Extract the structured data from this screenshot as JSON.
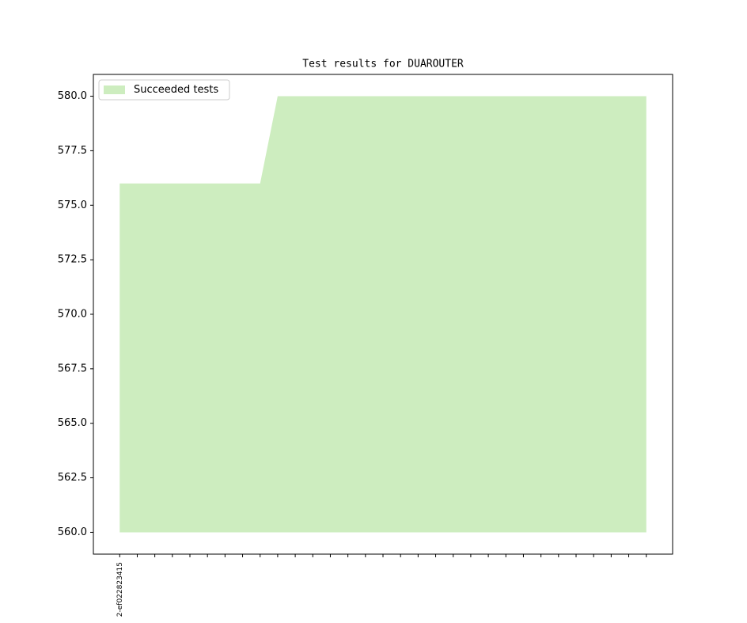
{
  "chart_data": {
    "type": "area",
    "title": "Test results for DUAROUTER",
    "categories": [
      "2-ef022823415",
      null,
      null,
      null,
      null,
      null,
      null,
      null,
      null,
      null,
      null,
      null,
      null,
      null,
      null,
      null,
      null,
      null,
      null,
      null,
      null,
      null,
      null,
      null,
      null,
      null,
      null,
      null,
      null,
      null,
      null
    ],
    "series": [
      {
        "name": "Succeeded tests",
        "color": "#cdedbf",
        "values": [
          576,
          576,
          576,
          576,
          576,
          576,
          576,
          576,
          576,
          580,
          580,
          580,
          580,
          580,
          580,
          580,
          580,
          580,
          580,
          580,
          580,
          580,
          580,
          580,
          580,
          580,
          580,
          580,
          580,
          580,
          580
        ]
      }
    ],
    "baseline": 560,
    "xlim": [
      -1.5,
      31.5
    ],
    "ylim": [
      559,
      581
    ],
    "yticks": [
      {
        "value": 560,
        "label": "560.0"
      },
      562.5,
      {
        "value": 565,
        "label": "565.0"
      },
      567.5,
      {
        "value": 570,
        "label": "570.0"
      },
      572.5,
      {
        "value": 575,
        "label": "575.0"
      },
      577.5,
      {
        "value": 580,
        "label": "580.0"
      }
    ],
    "legend": "upper left",
    "grid": false
  }
}
